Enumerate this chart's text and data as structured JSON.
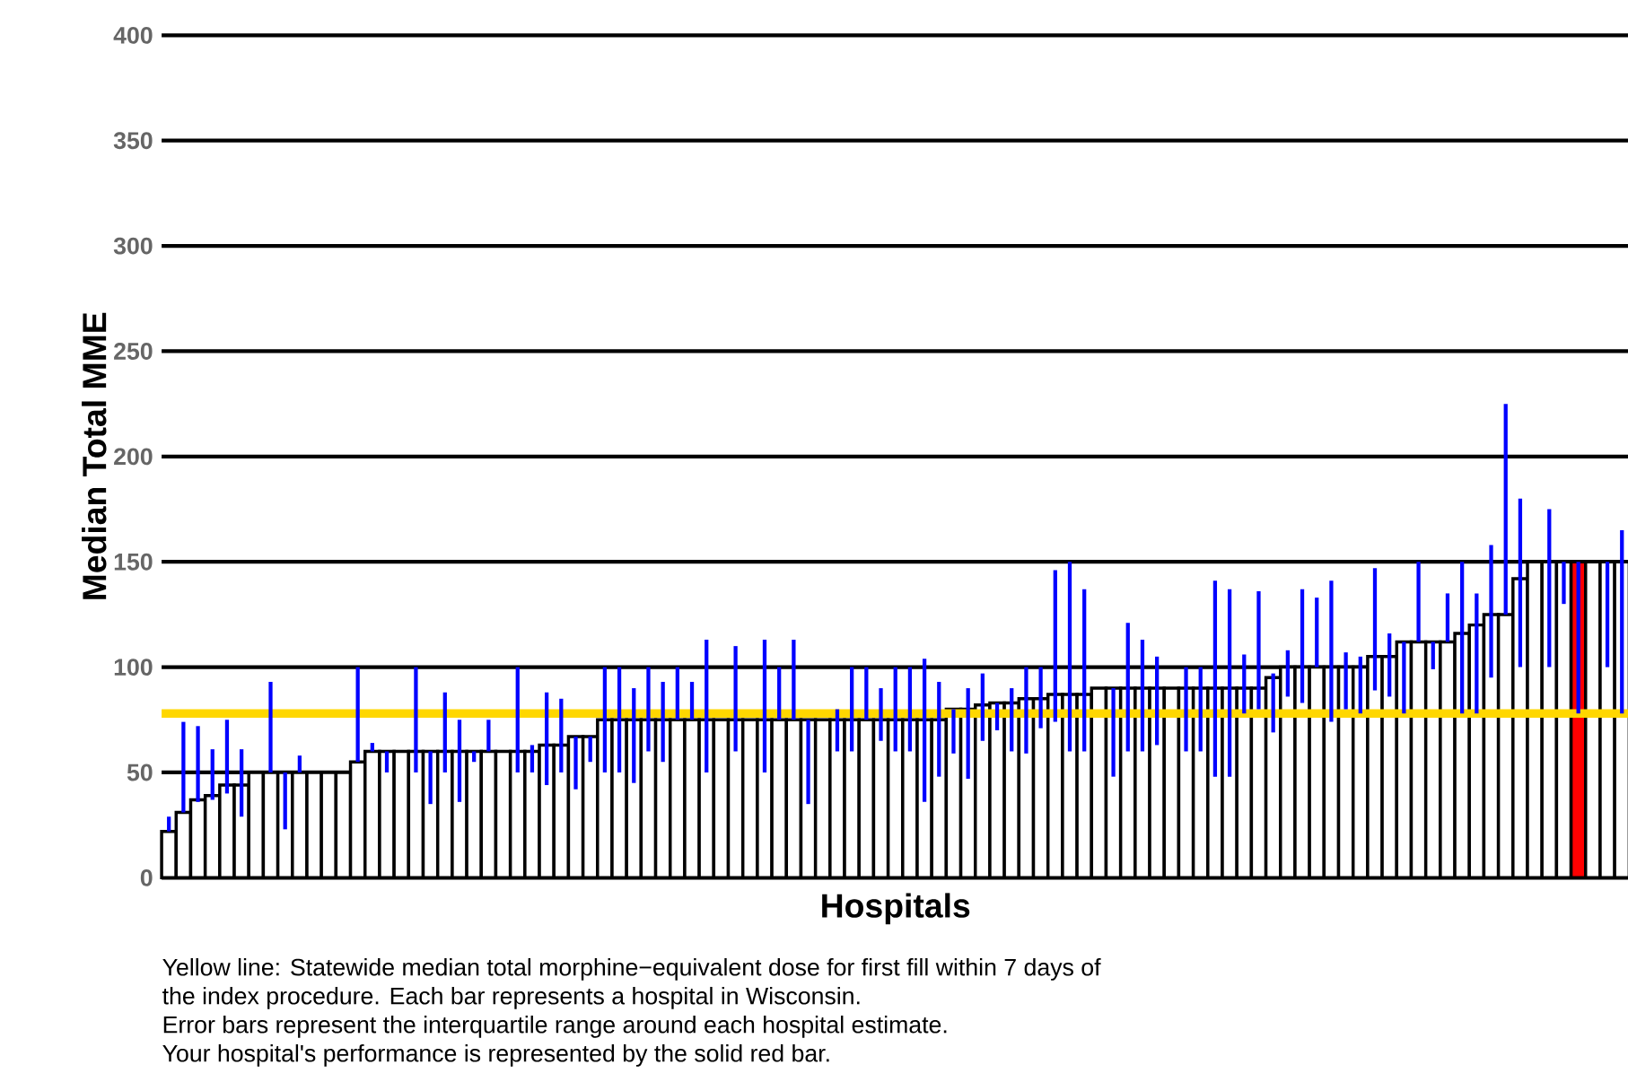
{
  "chart_data": {
    "type": "bar",
    "xlabel": "Hospitals",
    "ylabel": "Median Total MME",
    "categories": [
      null,
      null,
      null,
      null,
      null,
      null,
      null,
      null,
      null,
      null,
      null,
      null,
      null,
      null,
      null,
      null,
      null,
      null,
      null,
      null,
      null,
      null,
      null,
      null,
      null,
      null,
      null,
      null,
      null,
      null,
      null,
      null,
      null,
      null,
      null,
      null,
      null,
      null,
      null,
      null,
      null,
      null,
      null,
      null,
      null,
      null,
      null,
      null,
      null,
      null,
      null,
      null,
      null,
      null,
      null,
      null,
      null,
      null,
      null,
      null,
      null,
      null,
      null,
      null,
      null,
      null,
      null,
      null,
      null,
      null,
      null,
      null,
      null,
      null,
      null,
      null,
      null,
      null,
      null,
      null,
      null,
      null,
      null,
      null,
      null,
      null,
      null,
      null,
      null,
      null,
      null,
      null,
      null,
      null,
      null,
      null,
      null,
      null,
      null,
      null,
      null
    ],
    "values": [
      22,
      31,
      37,
      39,
      44,
      44,
      50,
      50,
      50,
      50,
      50,
      50,
      50,
      55,
      60,
      60,
      60,
      60,
      60,
      60,
      60,
      60,
      60,
      60,
      60,
      60,
      63,
      63,
      67,
      67,
      75,
      75,
      75,
      75,
      75,
      75,
      75,
      75,
      75,
      75,
      75,
      75,
      75,
      75,
      75,
      75,
      75,
      75,
      75,
      75,
      75,
      75,
      75,
      75,
      80,
      80,
      82,
      83,
      83,
      85,
      85,
      87,
      87,
      87,
      90,
      90,
      90,
      90,
      90,
      90,
      90,
      90,
      90,
      90,
      90,
      90,
      95,
      100,
      100,
      100,
      100,
      100,
      100,
      105,
      105,
      112,
      112,
      112,
      112,
      116,
      120,
      125,
      125,
      142,
      150,
      150,
      150,
      150,
      150,
      150,
      150
    ],
    "colors": [
      "#ffffff",
      "#ffffff",
      "#ffffff",
      "#ffffff",
      "#ffffff",
      "#ffffff",
      "#ffffff",
      "#ffffff",
      "#ffffff",
      "#ffffff",
      "#ffffff",
      "#ffffff",
      "#ffffff",
      "#ffffff",
      "#ffffff",
      "#ffffff",
      "#ffffff",
      "#ffffff",
      "#ffffff",
      "#ffffff",
      "#ffffff",
      "#ffffff",
      "#ffffff",
      "#ffffff",
      "#ffffff",
      "#ffffff",
      "#ffffff",
      "#ffffff",
      "#ffffff",
      "#ffffff",
      "#ffffff",
      "#ffffff",
      "#ffffff",
      "#ffffff",
      "#ffffff",
      "#ffffff",
      "#ffffff",
      "#ffffff",
      "#ffffff",
      "#ffffff",
      "#ffffff",
      "#ffffff",
      "#ffffff",
      "#ffffff",
      "#ffffff",
      "#ffffff",
      "#ffffff",
      "#ffffff",
      "#ffffff",
      "#ffffff",
      "#ffffff",
      "#ffffff",
      "#ffffff",
      "#ffffff",
      "#ffffff",
      "#ffffff",
      "#ffffff",
      "#ffffff",
      "#ffffff",
      "#ffffff",
      "#ffffff",
      "#ffffff",
      "#ffffff",
      "#ffffff",
      "#ffffff",
      "#ffffff",
      "#ffffff",
      "#ffffff",
      "#ffffff",
      "#ffffff",
      "#ffffff",
      "#ffffff",
      "#ffffff",
      "#ffffff",
      "#ffffff",
      "#ffffff",
      "#ffffff",
      "#ffffff",
      "#ffffff",
      "#ffffff",
      "#ffffff",
      "#ffffff",
      "#ffffff",
      "#ffffff",
      "#ffffff",
      "#ffffff",
      "#ffffff",
      "#ffffff",
      "#ffffff",
      "#ffffff",
      "#ffffff",
      "#ffffff",
      "#ffffff",
      "#ffffff",
      "#ffffff",
      "#ffffff",
      "#ffffff",
      "#ff0000",
      "#ffffff",
      "#ffffff",
      "#ffffff"
    ],
    "errors": [
      [
        22,
        29
      ],
      [
        31,
        74
      ],
      [
        36,
        72
      ],
      [
        37,
        61
      ],
      [
        40,
        75
      ],
      [
        29,
        61
      ],
      null,
      [
        50,
        93
      ],
      [
        23,
        50
      ],
      [
        50,
        58
      ],
      null,
      null,
      null,
      [
        55,
        100
      ],
      [
        60,
        64
      ],
      [
        50,
        60
      ],
      null,
      [
        50,
        100
      ],
      [
        35,
        60
      ],
      [
        50,
        88
      ],
      [
        36,
        75
      ],
      [
        55,
        60
      ],
      [
        60,
        75
      ],
      null,
      [
        50,
        100
      ],
      [
        50,
        63
      ],
      [
        44,
        88
      ],
      [
        50,
        85
      ],
      [
        42,
        67
      ],
      [
        55,
        67
      ],
      [
        50,
        100
      ],
      [
        50,
        100
      ],
      [
        45,
        90
      ],
      [
        60,
        100
      ],
      [
        55,
        93
      ],
      [
        75,
        100
      ],
      [
        75,
        93
      ],
      [
        50,
        113
      ],
      null,
      [
        60,
        110
      ],
      null,
      [
        50,
        113
      ],
      [
        75,
        100
      ],
      [
        75,
        113
      ],
      [
        35,
        75
      ],
      null,
      [
        60,
        80
      ],
      [
        60,
        100
      ],
      [
        75,
        100
      ],
      [
        65,
        90
      ],
      [
        60,
        100
      ],
      [
        60,
        100
      ],
      [
        36,
        104
      ],
      [
        48,
        93
      ],
      [
        59,
        80
      ],
      [
        47,
        90
      ],
      [
        65,
        97
      ],
      [
        70,
        83
      ],
      [
        60,
        90
      ],
      [
        59,
        100
      ],
      [
        71,
        100
      ],
      [
        74,
        146
      ],
      [
        60,
        150
      ],
      [
        60,
        137
      ],
      null,
      [
        48,
        90
      ],
      [
        60,
        121
      ],
      [
        60,
        113
      ],
      [
        63,
        105
      ],
      null,
      [
        60,
        100
      ],
      [
        60,
        100
      ],
      [
        48,
        141
      ],
      [
        48,
        137
      ],
      [
        78,
        106
      ],
      [
        80,
        136
      ],
      [
        69,
        97
      ],
      [
        86,
        108
      ],
      [
        83,
        137
      ],
      [
        100,
        133
      ],
      [
        74,
        141
      ],
      [
        80,
        107
      ],
      [
        78,
        105
      ],
      [
        89,
        147
      ],
      [
        86,
        116
      ],
      [
        78,
        112
      ],
      [
        112,
        150
      ],
      [
        99,
        112
      ],
      [
        112,
        135
      ],
      [
        78,
        150
      ],
      [
        78,
        135
      ],
      [
        95,
        158
      ],
      [
        125,
        225
      ],
      [
        100,
        180
      ],
      null,
      [
        100,
        175
      ],
      [
        130,
        150
      ],
      [
        78,
        150
      ],
      null,
      [
        100,
        150
      ],
      [
        78,
        165
      ]
    ],
    "ylim": [
      0,
      400
    ],
    "yticks": [
      0,
      50,
      100,
      150,
      200,
      250,
      300,
      350,
      400
    ],
    "grid": "y",
    "ref_lines": [
      {
        "axis": "y",
        "value": 78,
        "color": "#ffd700"
      }
    ],
    "annotations": [
      "Yellow line: Statewide median total morphine−equivalent dose for first fill within 7 days of",
      "the index procedure. Each bar represents a hospital in Wisconsin.",
      "Error bars represent the interquartile range around each hospital estimate.",
      "Your hospital's performance is represented by the solid red bar."
    ]
  }
}
